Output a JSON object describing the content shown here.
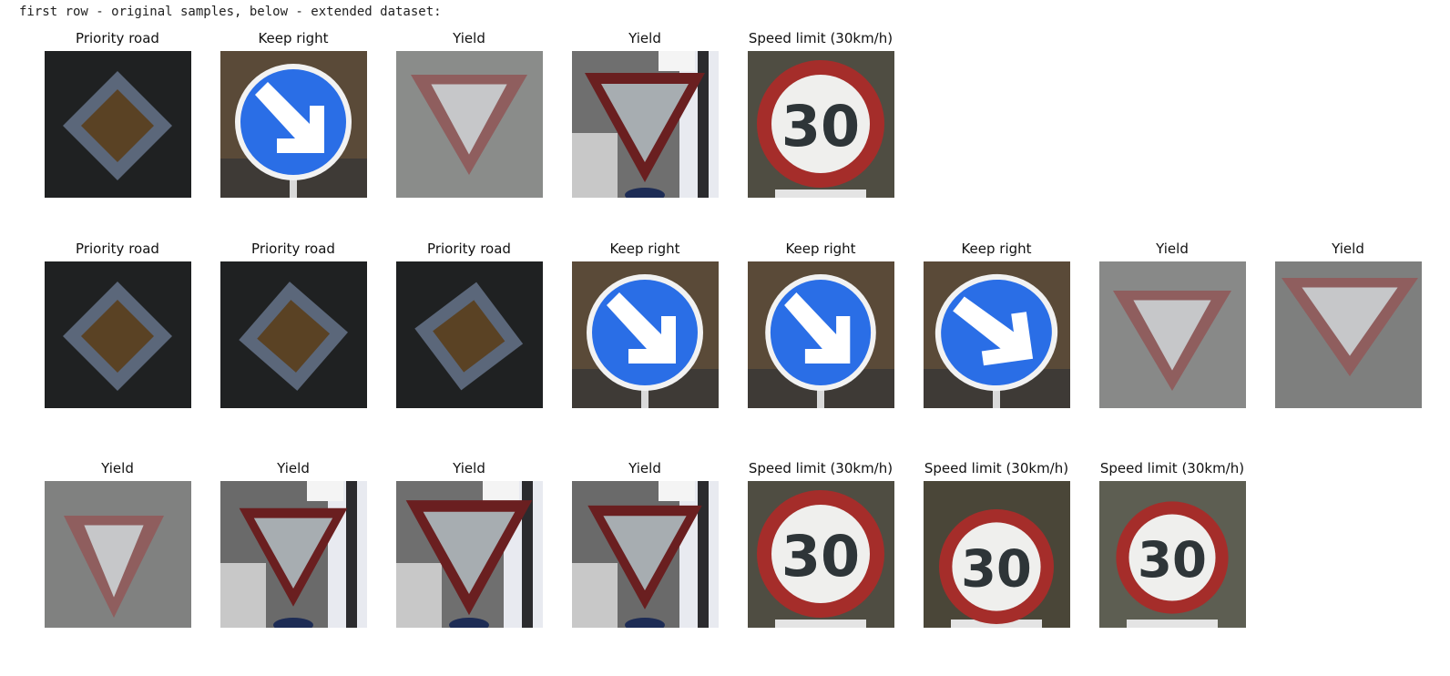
{
  "caption": "first row - original samples, below - extended dataset:",
  "rows": [
    [
      {
        "label": "Priority road",
        "icon": "priority-road-sign-icon"
      },
      {
        "label": "Keep right",
        "icon": "keep-right-sign-icon"
      },
      {
        "label": "Yield",
        "icon": "yield-sign-icon"
      },
      {
        "label": "Yield",
        "icon": "yield-sign-icon"
      },
      {
        "label": "Speed limit (30km/h)",
        "icon": "speed-limit-30-sign-icon",
        "number": "30"
      }
    ],
    [
      {
        "label": "Priority road",
        "icon": "priority-road-sign-icon"
      },
      {
        "label": "Priority road",
        "icon": "priority-road-sign-icon"
      },
      {
        "label": "Priority road",
        "icon": "priority-road-sign-icon"
      },
      {
        "label": "Keep right",
        "icon": "keep-right-sign-icon"
      },
      {
        "label": "Keep right",
        "icon": "keep-right-sign-icon"
      },
      {
        "label": "Keep right",
        "icon": "keep-right-sign-icon"
      },
      {
        "label": "Yield",
        "icon": "yield-sign-icon"
      },
      {
        "label": "Yield",
        "icon": "yield-sign-icon"
      }
    ],
    [
      {
        "label": "Yield",
        "icon": "yield-sign-icon"
      },
      {
        "label": "Yield",
        "icon": "yield-sign-icon"
      },
      {
        "label": "Yield",
        "icon": "yield-sign-icon"
      },
      {
        "label": "Yield",
        "icon": "yield-sign-icon"
      },
      {
        "label": "Speed limit (30km/h)",
        "icon": "speed-limit-30-sign-icon",
        "number": "30"
      },
      {
        "label": "Speed limit (30km/h)",
        "icon": "speed-limit-30-sign-icon",
        "number": "30"
      },
      {
        "label": "Speed limit (30km/h)",
        "icon": "speed-limit-30-sign-icon",
        "number": "30"
      }
    ]
  ]
}
